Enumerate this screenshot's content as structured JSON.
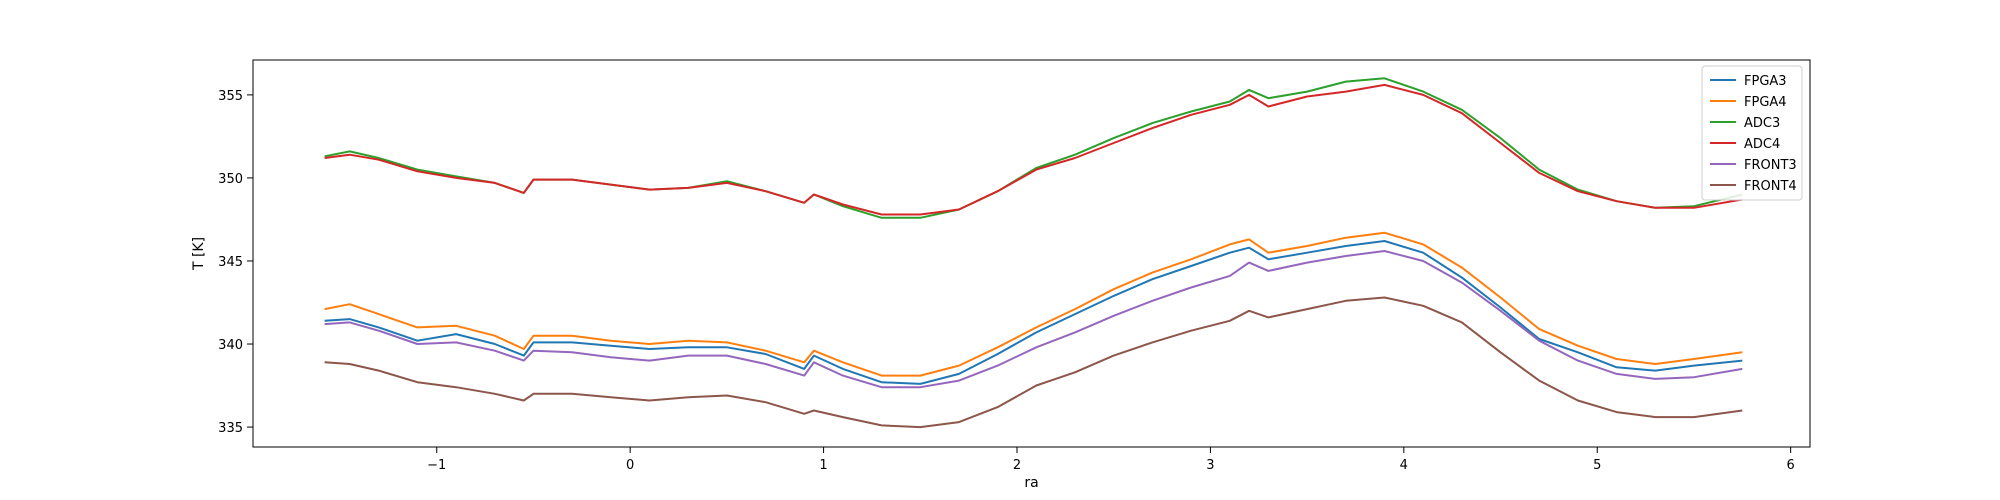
{
  "chart_data": {
    "type": "line",
    "xlabel": "ra",
    "ylabel": "T [K]",
    "xlim": [
      -1.95,
      6.1
    ],
    "ylim": [
      333.8,
      357.1
    ],
    "xticks": [
      -1,
      0,
      1,
      2,
      3,
      4,
      5,
      6
    ],
    "yticks": [
      335,
      340,
      345,
      350,
      355
    ],
    "grid": false,
    "legend_position": "top-right",
    "x": [
      -1.58,
      -1.45,
      -1.3,
      -1.1,
      -0.9,
      -0.7,
      -0.55,
      -0.5,
      -0.3,
      -0.1,
      0.1,
      0.3,
      0.5,
      0.7,
      0.9,
      0.95,
      1.1,
      1.3,
      1.5,
      1.7,
      1.9,
      2.1,
      2.3,
      2.5,
      2.7,
      2.9,
      3.1,
      3.2,
      3.3,
      3.5,
      3.7,
      3.9,
      4.1,
      4.3,
      4.5,
      4.7,
      4.9,
      5.1,
      5.3,
      5.5,
      5.75
    ],
    "series": [
      {
        "name": "FPGA3",
        "color": "#1f77b4",
        "values": [
          341.4,
          341.5,
          341.0,
          340.2,
          340.6,
          340.0,
          339.3,
          340.1,
          340.1,
          339.9,
          339.7,
          339.8,
          339.8,
          339.4,
          338.5,
          339.3,
          338.5,
          337.7,
          337.6,
          338.2,
          339.4,
          340.7,
          341.8,
          342.9,
          343.9,
          344.7,
          345.5,
          345.8,
          345.1,
          345.5,
          345.9,
          346.2,
          345.5,
          344.0,
          342.2,
          340.3,
          339.5,
          338.6,
          338.4,
          338.7,
          339.0
        ]
      },
      {
        "name": "FPGA4",
        "color": "#ff7f0e",
        "values": [
          342.1,
          342.4,
          341.8,
          341.0,
          341.1,
          340.5,
          339.7,
          340.5,
          340.5,
          340.2,
          340.0,
          340.2,
          340.1,
          339.6,
          338.9,
          339.6,
          338.9,
          338.1,
          338.1,
          338.7,
          339.8,
          341.0,
          342.1,
          343.3,
          344.3,
          345.1,
          346.0,
          346.3,
          345.5,
          345.9,
          346.4,
          346.7,
          346.0,
          344.6,
          342.8,
          340.9,
          339.9,
          339.1,
          338.8,
          339.1,
          339.5
        ]
      },
      {
        "name": "ADC3",
        "color": "#2ca02c",
        "values": [
          351.3,
          351.6,
          351.2,
          350.5,
          350.1,
          349.7,
          349.1,
          349.9,
          349.9,
          349.6,
          349.3,
          349.4,
          349.8,
          349.2,
          348.5,
          349.0,
          348.3,
          347.6,
          347.6,
          348.1,
          349.2,
          350.6,
          351.4,
          352.4,
          353.3,
          354.0,
          354.6,
          355.3,
          354.8,
          355.2,
          355.8,
          356.0,
          355.2,
          354.1,
          352.4,
          350.5,
          349.3,
          348.6,
          348.2,
          348.3,
          349.0
        ]
      },
      {
        "name": "ADC4",
        "color": "#d62728",
        "values": [
          351.2,
          351.4,
          351.1,
          350.4,
          350.0,
          349.7,
          349.1,
          349.9,
          349.9,
          349.6,
          349.3,
          349.4,
          349.7,
          349.2,
          348.5,
          349.0,
          348.4,
          347.8,
          347.8,
          348.1,
          349.2,
          350.5,
          351.2,
          352.1,
          353.0,
          353.8,
          354.4,
          355.0,
          354.3,
          354.9,
          355.2,
          355.6,
          355.0,
          353.9,
          352.1,
          350.3,
          349.2,
          348.6,
          348.2,
          348.2,
          348.7
        ]
      },
      {
        "name": "FRONT3",
        "color": "#9467bd",
        "values": [
          341.2,
          341.3,
          340.8,
          340.0,
          340.1,
          339.6,
          339.0,
          339.6,
          339.5,
          339.2,
          339.0,
          339.3,
          339.3,
          338.8,
          338.1,
          338.9,
          338.1,
          337.4,
          337.4,
          337.8,
          338.7,
          339.8,
          340.7,
          341.7,
          342.6,
          343.4,
          344.1,
          344.9,
          344.4,
          344.9,
          345.3,
          345.6,
          345.0,
          343.7,
          342.0,
          340.2,
          339.0,
          338.2,
          337.9,
          338.0,
          338.5
        ]
      },
      {
        "name": "FRONT4",
        "color": "#8c564b",
        "values": [
          338.9,
          338.8,
          338.4,
          337.7,
          337.4,
          337.0,
          336.6,
          337.0,
          337.0,
          336.8,
          336.6,
          336.8,
          336.9,
          336.5,
          335.8,
          336.0,
          335.6,
          335.1,
          335.0,
          335.3,
          336.2,
          337.5,
          338.3,
          339.3,
          340.1,
          340.8,
          341.4,
          342.0,
          341.6,
          342.1,
          342.6,
          342.8,
          342.3,
          341.3,
          339.5,
          337.8,
          336.6,
          335.9,
          335.6,
          335.6,
          336.0
        ]
      }
    ]
  }
}
